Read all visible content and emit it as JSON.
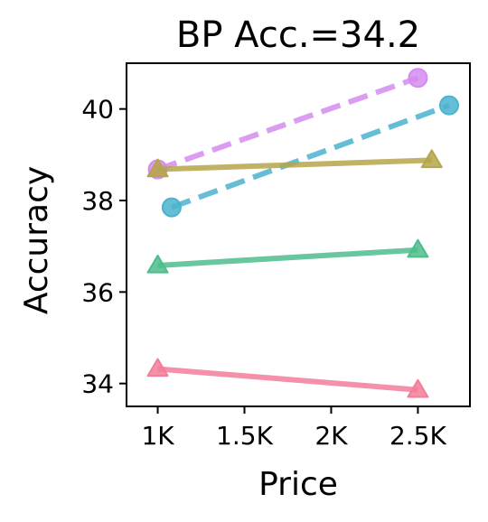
{
  "chart_data": {
    "type": "line",
    "title": "BP Acc.=34.2",
    "xlabel": "Price",
    "ylabel": "Accuracy",
    "xlim": [
      820,
      2800
    ],
    "ylim": [
      33.5,
      41.0
    ],
    "xticks": [
      {
        "value": 1000,
        "label": "1K"
      },
      {
        "value": 1500,
        "label": "1.5K"
      },
      {
        "value": 2000,
        "label": "2K"
      },
      {
        "value": 2500,
        "label": "2.5K"
      }
    ],
    "yticks": [
      {
        "value": 34,
        "label": "34"
      },
      {
        "value": 36,
        "label": "36"
      },
      {
        "value": 38,
        "label": "38"
      },
      {
        "value": 40,
        "label": "40"
      }
    ],
    "grid": false,
    "legend": "none",
    "series": [
      {
        "color": "#d38cf0",
        "marker": "circle",
        "dashed": true,
        "x": [
          1000,
          2500
        ],
        "y": [
          38.68,
          40.68
        ]
      },
      {
        "color": "#4ab3cf",
        "marker": "circle",
        "dashed": true,
        "x": [
          1080,
          2680
        ],
        "y": [
          37.85,
          40.08
        ]
      },
      {
        "color": "#b5a64a",
        "marker": "triangle",
        "dashed": false,
        "x": [
          1000,
          2580
        ],
        "y": [
          38.68,
          38.88
        ]
      },
      {
        "color": "#4dbd8c",
        "marker": "triangle",
        "dashed": false,
        "x": [
          1000,
          2500
        ],
        "y": [
          36.58,
          36.92
        ]
      },
      {
        "color": "#f27e99",
        "marker": "triangle",
        "dashed": false,
        "x": [
          1000,
          2500
        ],
        "y": [
          34.32,
          33.86
        ]
      }
    ]
  }
}
